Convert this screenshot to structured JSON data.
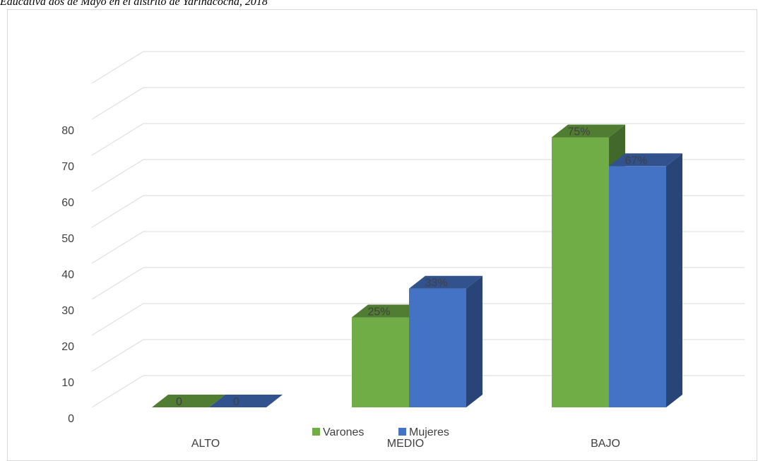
{
  "caption": "Educativa dos de Mayo en el distrito de Yarinacocha, 2018",
  "chart_data": {
    "type": "bar",
    "categories": [
      "ALTO",
      "MEDIO",
      "BAJO"
    ],
    "series": [
      {
        "name": "Varones",
        "values": [
          0,
          25,
          75
        ],
        "labels": [
          "0",
          "25%",
          "75%"
        ],
        "color": "#70ad47"
      },
      {
        "name": "Mujeres",
        "values": [
          0,
          33,
          67
        ],
        "labels": [
          "0",
          "33%",
          "67%"
        ],
        "color": "#4472c4"
      }
    ],
    "ylim": [
      0,
      80
    ],
    "yticks": [
      0,
      10,
      20,
      30,
      40,
      50,
      60,
      70,
      80
    ],
    "grid": true,
    "three_d": true,
    "legend_position": "bottom"
  }
}
